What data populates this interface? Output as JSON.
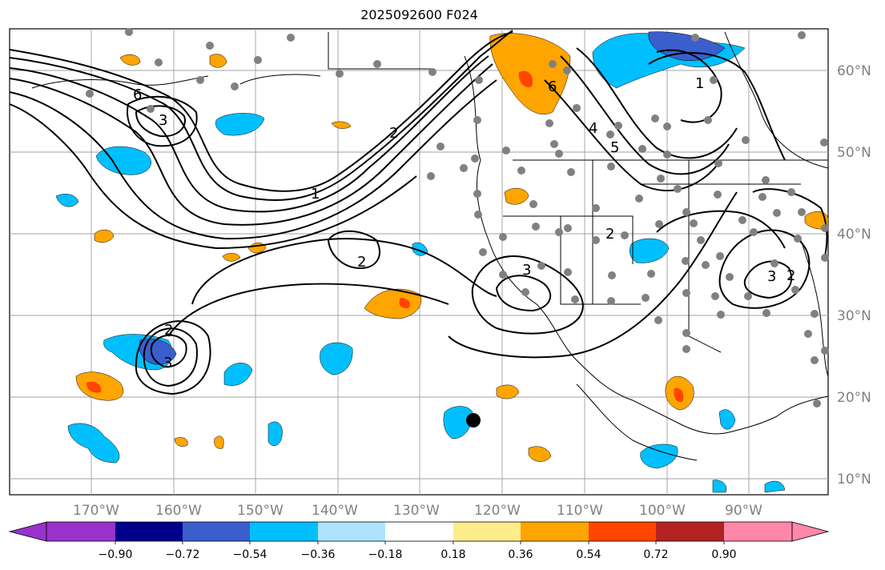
{
  "title": "2025092600 F024",
  "map": {
    "lon_labels": [
      "170°W",
      "160°W",
      "150°W",
      "140°W",
      "130°W",
      "120°W",
      "110°W",
      "100°W",
      "90°W"
    ],
    "lat_labels": [
      "60°N",
      "50°N",
      "40°N",
      "30°N",
      "20°N",
      "10°N"
    ],
    "contour_labels": [
      "6",
      "3",
      "1",
      "2",
      "2",
      "3",
      "2",
      "3",
      "6",
      "4",
      "5",
      "1",
      "2",
      "3",
      "2"
    ],
    "colors": {
      "land_ocean": "#ffffff",
      "grid": "#a0a0a0",
      "contour": "#000000",
      "dot": "#808080"
    }
  },
  "colorbar": {
    "ticks": [
      "−0.90",
      "−0.72",
      "−0.54",
      "−0.36",
      "−0.18",
      "0.18",
      "0.36",
      "0.54",
      "0.72",
      "0.90"
    ],
    "colors": [
      "#9932cc",
      "#00008b",
      "#3a5fcd",
      "#00bfff",
      "#aee3ff",
      "#ffffff",
      "#ffec8b",
      "#ffa500",
      "#ff4500",
      "#b22222",
      "#ff88aa"
    ]
  }
}
